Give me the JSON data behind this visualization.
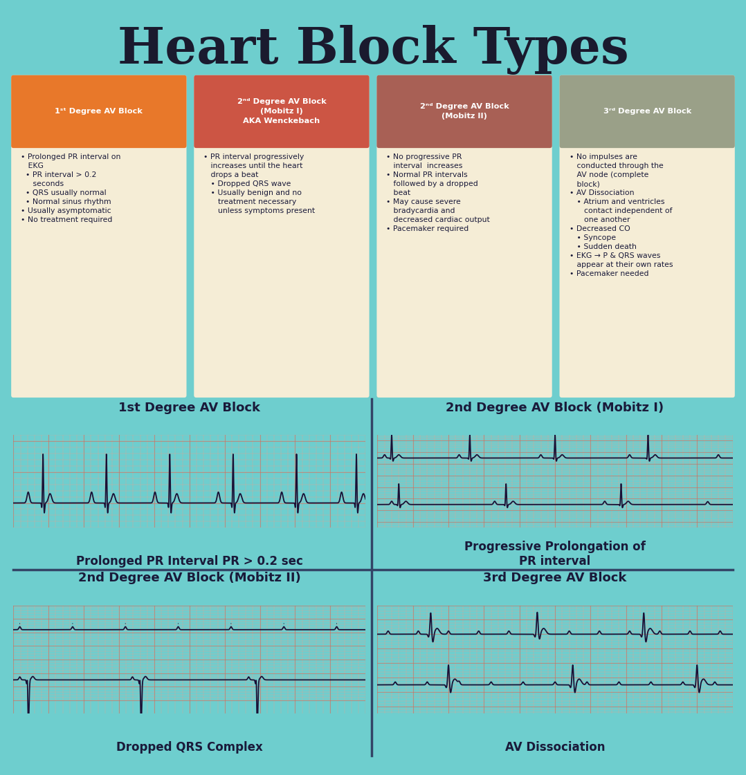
{
  "title": "Heart Block Types",
  "title_fontsize": 52,
  "title_color": "#1a1a2e",
  "bg_color": "#6ecece",
  "card_bg": "#f5edd6",
  "ecg_paper_color": "#fef5d8",
  "header_colors": [
    "#e8782a",
    "#cc5544",
    "#a86055",
    "#9aA088"
  ],
  "header_texts": [
    "1ˢᵗ Degree AV Block",
    "2ⁿᵈ Degree AV Block\n(Mobitz I)\nAKA Wenckebach",
    "2ⁿᵈ Degree AV Block\n(Mobitz II)",
    "3ʳᵈ Degree AV Block"
  ],
  "bullet_points": [
    "• Prolonged PR interval on\n   EKG\n  • PR interval > 0.2\n     seconds\n  • QRS usually normal\n  • Normal sinus rhythm\n• Usually asymptomatic\n• No treatment required",
    "• PR interval progressively\n   increases until the heart\n   drops a beat\n   • Dropped QRS wave\n   • Usually benign and no\n      treatment necessary\n      unless symptoms present",
    "• No progressive PR\n   interval  increases\n• Normal PR intervals\n   followed by a dropped\n   beat\n• May cause severe\n   bradycardia and\n   decreased cardiac output\n• Pacemaker required",
    "• No impulses are\n   conducted through the\n   AV node (complete\n   block)\n• AV Dissociation\n   • Atrium and ventricles\n      contact independent of\n      one another\n• Decreased CO\n   • Syncope\n   • Sudden death\n• EKG → P & QRS waves\n   appear at their own rates\n• Pacemaker needed"
  ],
  "ecg_top_labels": [
    "1st Degree AV Block",
    "2nd Degree AV Block (Mobitz I)"
  ],
  "ecg_bottom_labels": [
    "2nd Degree AV Block (Mobitz II)",
    "3rd Degree AV Block"
  ],
  "ecg_sublabels": [
    "Prolonged PR Interval PR > 0.2 sec",
    "Progressive Prolongation of\nPR interval",
    "Dropped QRS Complex",
    "AV Dissociation"
  ],
  "grid_minor_color": "#e8a090",
  "grid_major_color": "#c87060",
  "divider_color": "#334466",
  "text_color": "#1a1a3a",
  "header_text_color": "#ffffff",
  "bullet_fontsize": 7.8,
  "label_fontsize": 13,
  "sublabel_fontsize": 12
}
